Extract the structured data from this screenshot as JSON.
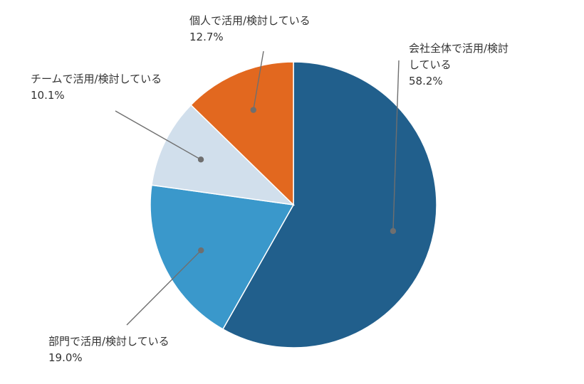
{
  "chart_data": {
    "type": "pie",
    "title": "",
    "start": "12 o'clock, clockwise",
    "slices": [
      {
        "label_lines": [
          "会社全体で活用/検討",
          "している"
        ],
        "value": 58.2,
        "value_label": "58.2%",
        "color": "#215f8c"
      },
      {
        "label_lines": [
          "部門で活用/検討している"
        ],
        "value": 19.0,
        "value_label": "19.0%",
        "color": "#3a98cb"
      },
      {
        "label_lines": [
          "チームで活用/検討している"
        ],
        "value": 10.1,
        "value_label": "10.1%",
        "color": "#d1dfec"
      },
      {
        "label_lines": [
          "個人で活用/検討している"
        ],
        "value": 12.7,
        "value_label": "12.7%",
        "color": "#e2681f"
      }
    ],
    "leader_line_color": "#6f6f6f",
    "legend": "none"
  }
}
